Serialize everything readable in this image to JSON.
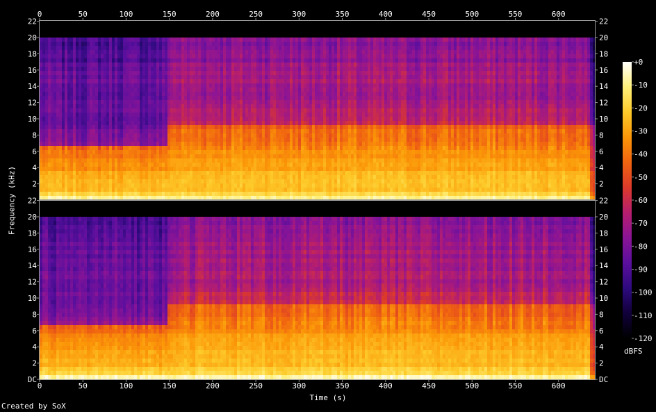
{
  "chart_data": {
    "type": "heatmap",
    "title": "",
    "xlabel": "Time (s)",
    "ylabel": "Frequency (kHz)",
    "xlim": [
      0,
      642
    ],
    "ylim_khz": [
      0,
      22.05
    ],
    "x_ticks": [
      0,
      50,
      100,
      150,
      200,
      250,
      300,
      350,
      400,
      450,
      500,
      550,
      600
    ],
    "y_ticks_top": [
      "2",
      "4",
      "6",
      "8",
      "10",
      "12",
      "14",
      "16",
      "18",
      "20",
      "22"
    ],
    "y_ticks_bottom": [
      "DC",
      "2",
      "4",
      "6",
      "8",
      "10",
      "12",
      "14",
      "16",
      "18",
      "20",
      "22"
    ],
    "channels": [
      "left",
      "right"
    ],
    "colorbar": {
      "unit": "dBFS",
      "range": [
        -120,
        0
      ],
      "ticks": [
        "+0",
        "-10",
        "-20",
        "-30",
        "-40",
        "-50",
        "-60",
        "-70",
        "-80",
        "-90",
        "-100",
        "-110",
        "-120"
      ],
      "colors": [
        "#000000",
        "#10003a",
        "#2e0a7e",
        "#5b0f9e",
        "#8a1496",
        "#b61e6e",
        "#dc3a2a",
        "#f06410",
        "#fb9708",
        "#fdca2a",
        "#fff07a",
        "#ffffff"
      ]
    },
    "segments": [
      {
        "from_s": 0,
        "to_s": 148,
        "description_kind": "low-band",
        "energy_cutoff_khz": 6.5,
        "hf_level_db": -85
      },
      {
        "from_s": 148,
        "to_s": 642,
        "description_kind": "full-band",
        "energy_cutoff_khz": 9,
        "hf_level_db": -70
      }
    ],
    "spectrum_cutoff_khz": 20
  },
  "footer": {
    "credit": "Created by SoX"
  }
}
